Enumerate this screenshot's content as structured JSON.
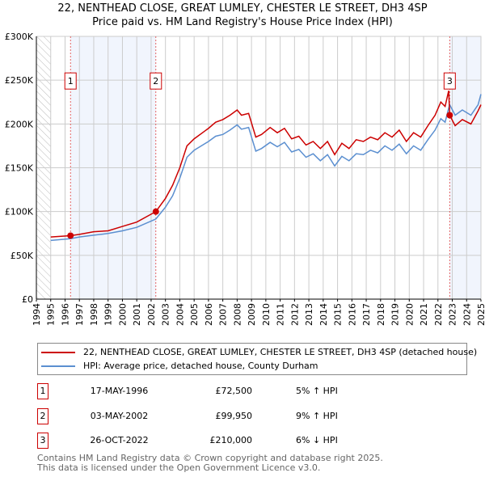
{
  "chart_data": {
    "type": "line",
    "title": "22, NENTHEAD CLOSE, GREAT LUMLEY, CHESTER LE STREET, DH3 4SP",
    "subtitle": "Price paid vs. HM Land Registry's House Price Index (HPI)",
    "xlim": [
      1994,
      2025
    ],
    "ylim": [
      0,
      300000
    ],
    "y_ticks": [
      0,
      50000,
      100000,
      150000,
      200000,
      250000,
      300000
    ],
    "y_tick_labels": [
      "£0",
      "£50K",
      "£100K",
      "£150K",
      "£200K",
      "£250K",
      "£300K"
    ],
    "x_ticks": [
      1994,
      1995,
      1996,
      1997,
      1998,
      1999,
      2000,
      2001,
      2002,
      2003,
      2004,
      2005,
      2006,
      2007,
      2008,
      2009,
      2010,
      2011,
      2012,
      2013,
      2014,
      2015,
      2016,
      2017,
      2018,
      2019,
      2020,
      2021,
      2022,
      2023,
      2024,
      2025
    ],
    "grid": true,
    "series": [
      {
        "name": "22, NENTHEAD CLOSE, GREAT LUMLEY, CHESTER LE STREET, DH3 4SP (detached house)",
        "color": "#cc0000",
        "x": [
          1995,
          1996.38,
          1997,
          1998,
          1999,
          2000,
          2001,
          2002.33,
          2003,
          2003.5,
          2004,
          2004.5,
          2005,
          2006,
          2006.5,
          2007,
          2007.5,
          2008,
          2008.3,
          2008.8,
          2009.3,
          2009.7,
          2010.3,
          2010.8,
          2011.3,
          2011.8,
          2012.3,
          2012.8,
          2013.3,
          2013.8,
          2014.3,
          2014.8,
          2015.3,
          2015.8,
          2016.3,
          2016.8,
          2017.3,
          2017.8,
          2018.3,
          2018.8,
          2019.3,
          2019.8,
          2020.3,
          2020.8,
          2021.3,
          2021.8,
          2022.2,
          2022.5,
          2022.75,
          2022.82,
          2023.2,
          2023.7,
          2024.3,
          2024.8,
          2025
        ],
        "y": [
          71000,
          72500,
          74000,
          77000,
          78000,
          83000,
          88000,
          99950,
          115000,
          130000,
          150000,
          175000,
          183000,
          195000,
          202000,
          205000,
          210000,
          216000,
          210000,
          212000,
          185000,
          188000,
          196000,
          190000,
          195000,
          183000,
          186000,
          176000,
          180000,
          172000,
          180000,
          165000,
          178000,
          172000,
          182000,
          180000,
          185000,
          182000,
          190000,
          185000,
          193000,
          180000,
          190000,
          185000,
          198000,
          210000,
          225000,
          220000,
          238000,
          210000,
          198000,
          205000,
          200000,
          215000,
          222000
        ]
      },
      {
        "name": "HPI: Average price, detached house, County Durham",
        "color": "#5b8fd0",
        "x": [
          1995,
          1996.38,
          1997,
          1998,
          1999,
          2000,
          2001,
          2002.33,
          2003,
          2003.5,
          2004,
          2004.5,
          2005,
          2006,
          2006.5,
          2007,
          2007.5,
          2008,
          2008.3,
          2008.8,
          2009.3,
          2009.7,
          2010.3,
          2010.8,
          2011.3,
          2011.8,
          2012.3,
          2012.8,
          2013.3,
          2013.8,
          2014.3,
          2014.8,
          2015.3,
          2015.8,
          2016.3,
          2016.8,
          2017.3,
          2017.8,
          2018.3,
          2018.8,
          2019.3,
          2019.8,
          2020.3,
          2020.8,
          2021.3,
          2021.8,
          2022.2,
          2022.5,
          2022.75,
          2022.82,
          2023.2,
          2023.7,
          2024.3,
          2024.8,
          2025
        ],
        "y": [
          67000,
          69000,
          71000,
          73000,
          75000,
          78000,
          82000,
          91500,
          105000,
          118000,
          138000,
          162000,
          170000,
          180000,
          186000,
          188000,
          193000,
          199000,
          194000,
          196000,
          169000,
          172000,
          179000,
          174000,
          179000,
          168000,
          171000,
          162000,
          166000,
          158000,
          165000,
          152000,
          163000,
          158000,
          166000,
          165000,
          170000,
          167000,
          175000,
          170000,
          177000,
          166000,
          175000,
          170000,
          182000,
          193000,
          206000,
          202000,
          218000,
          222000,
          210000,
          216000,
          210000,
          222000,
          234000
        ]
      }
    ],
    "sales": [
      {
        "num": "1",
        "x": 1996.38,
        "y": 72500,
        "date": "17-MAY-1996",
        "price": "£72,500",
        "hpi": "5% ↑ HPI"
      },
      {
        "num": "2",
        "x": 2002.33,
        "y": 99950,
        "date": "03-MAY-2002",
        "price": "£99,950",
        "hpi": "9% ↑ HPI"
      },
      {
        "num": "3",
        "x": 2022.82,
        "y": 210000,
        "date": "26-OCT-2022",
        "price": "£210,000",
        "hpi": "6% ↓ HPI"
      }
    ],
    "shaded_ranges": [
      [
        1996.38,
        2002.33
      ],
      [
        2022.82,
        2025
      ]
    ],
    "hatched_ranges": [
      [
        1994,
        1995
      ]
    ]
  },
  "legend": {
    "red": "22, NENTHEAD CLOSE, GREAT LUMLEY, CHESTER LE STREET, DH3 4SP (detached house)",
    "blue": "HPI: Average price, detached house, County Durham"
  },
  "footer": {
    "line1": "Contains HM Land Registry data © Crown copyright and database right 2025.",
    "line2": "This data is licensed under the Open Government Licence v3.0."
  }
}
